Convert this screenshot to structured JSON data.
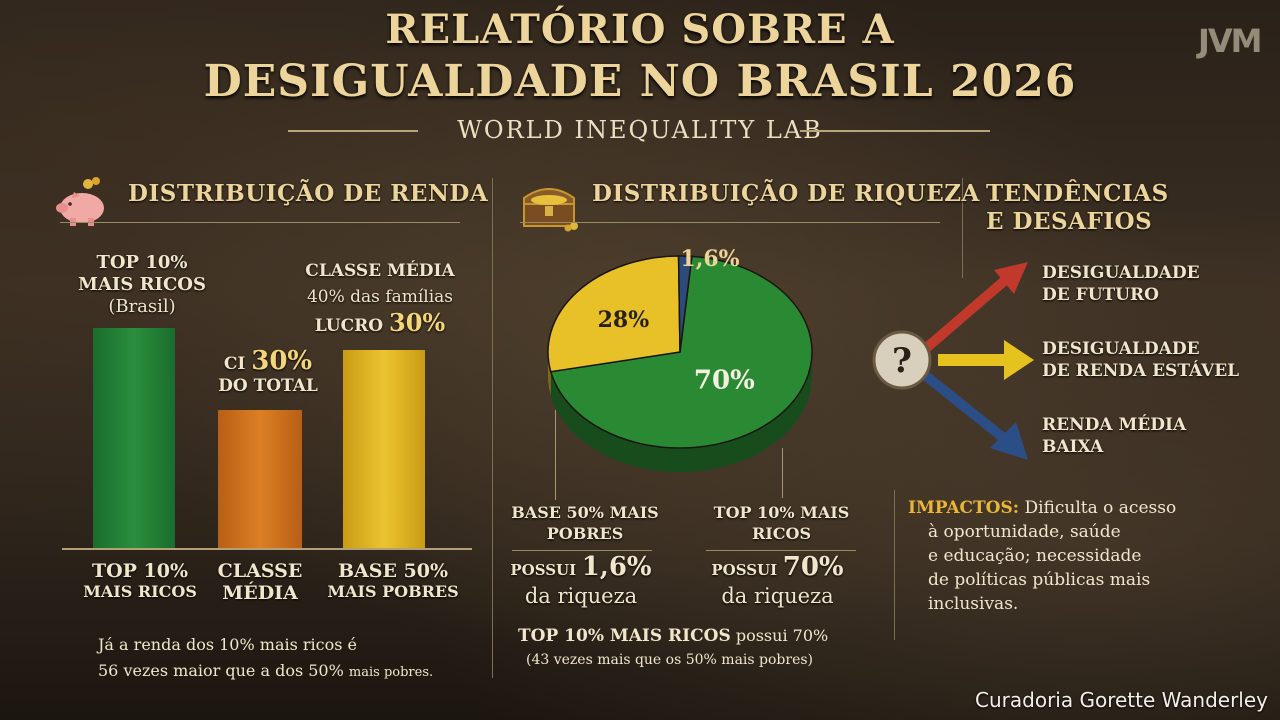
{
  "header": {
    "title_line1": "RELATÓRIO SOBRE A",
    "title_line2": "DESIGUALDADE NO BRASIL 2026",
    "subtitle": "WORLD INEQUALITY LAB",
    "logo": "JVM"
  },
  "income": {
    "heading": "DISTRIBUIÇÃO DE RENDA",
    "icon": "piggy-bank-icon",
    "top_annotation_line1": "TOP 10%",
    "top_annotation_line2": "MAIS RICOS",
    "top_annotation_line3": "(Brasil)",
    "middle_annotation_prefix": "CI",
    "middle_annotation_value": "30%",
    "middle_annotation_line2": "DO TOTAL",
    "base_annotation_line1": "CLASSE MÉDIA",
    "base_annotation_line2": "40% das famílias",
    "base_annotation_prefix": "LUCRO",
    "base_annotation_value": "30%",
    "bars": [
      {
        "line1": "TOP 10%",
        "line2": "MAIS RICOS",
        "color": "#1f7d35"
      },
      {
        "line1": "CLASSE",
        "line2": "MÉDIA",
        "color": "#d2741d"
      },
      {
        "line1": "BASE 50%",
        "line2": "MAIS POBRES",
        "color": "#e6bb25"
      }
    ],
    "footnote_line1": "Já a renda dos 10% mais ricos é",
    "footnote_line2_a": "56 vezes maior que a dos 50%",
    "footnote_line2_b": "mais pobres."
  },
  "wealth": {
    "heading": "DISTRIBUIÇÃO DE RIQUEZA",
    "icon": "treasure-chest-icon",
    "chart_data": {
      "type": "pie",
      "categories": [
        "TOP 10% MAIS RICOS",
        "28%",
        "BASE 50% MAIS POBRES"
      ],
      "values": [
        70,
        28,
        1.6
      ],
      "slice_labels": [
        "70%",
        "28%",
        "1,6%"
      ],
      "colors": [
        "#2a8a34",
        "#e8c027",
        "#2e4a7a"
      ]
    },
    "left_label_line1": "BASE 50% MAIS",
    "left_label_line2": "POBRES",
    "left_possui": "POSSUI",
    "left_value": "1,6%",
    "left_suffix": "da riqueza",
    "right_label_line1": "TOP 10% MAIS",
    "right_label_line2": "RICOS",
    "right_possui": "POSSUI",
    "right_value": "70%",
    "right_suffix": "da riqueza",
    "summary_bold": "TOP 10% MAIS RICOS",
    "summary_rest": "possui 70%",
    "summary_line2": "(43 vezes mais que os 50% mais pobres)"
  },
  "trends": {
    "heading_line1": "TENDÊNCIAS",
    "heading_line2": "E DESAFIOS",
    "question_icon": "question-mark-icon",
    "arrows": [
      {
        "line1": "DESIGUALDADE",
        "line2": "DE FUTURO",
        "color": "#c0392b"
      },
      {
        "line1": "DESIGUALDADE",
        "line2": "DE RENDA ESTÁVEL",
        "color": "#e6c21f"
      },
      {
        "line1": "RENDA MÉDIA",
        "line2": "BAIXA",
        "color": "#2c4e86"
      }
    ],
    "impacts_label": "IMPACTOS:",
    "impacts_line1": "Dificulta o acesso",
    "impacts_line2": "à oportunidade, saúde",
    "impacts_line3": "e educação; necessidade",
    "impacts_line4": "de políticas públicas mais",
    "impacts_line5": "inclusivas."
  },
  "credit": "Curadoria Gorette Wanderley"
}
